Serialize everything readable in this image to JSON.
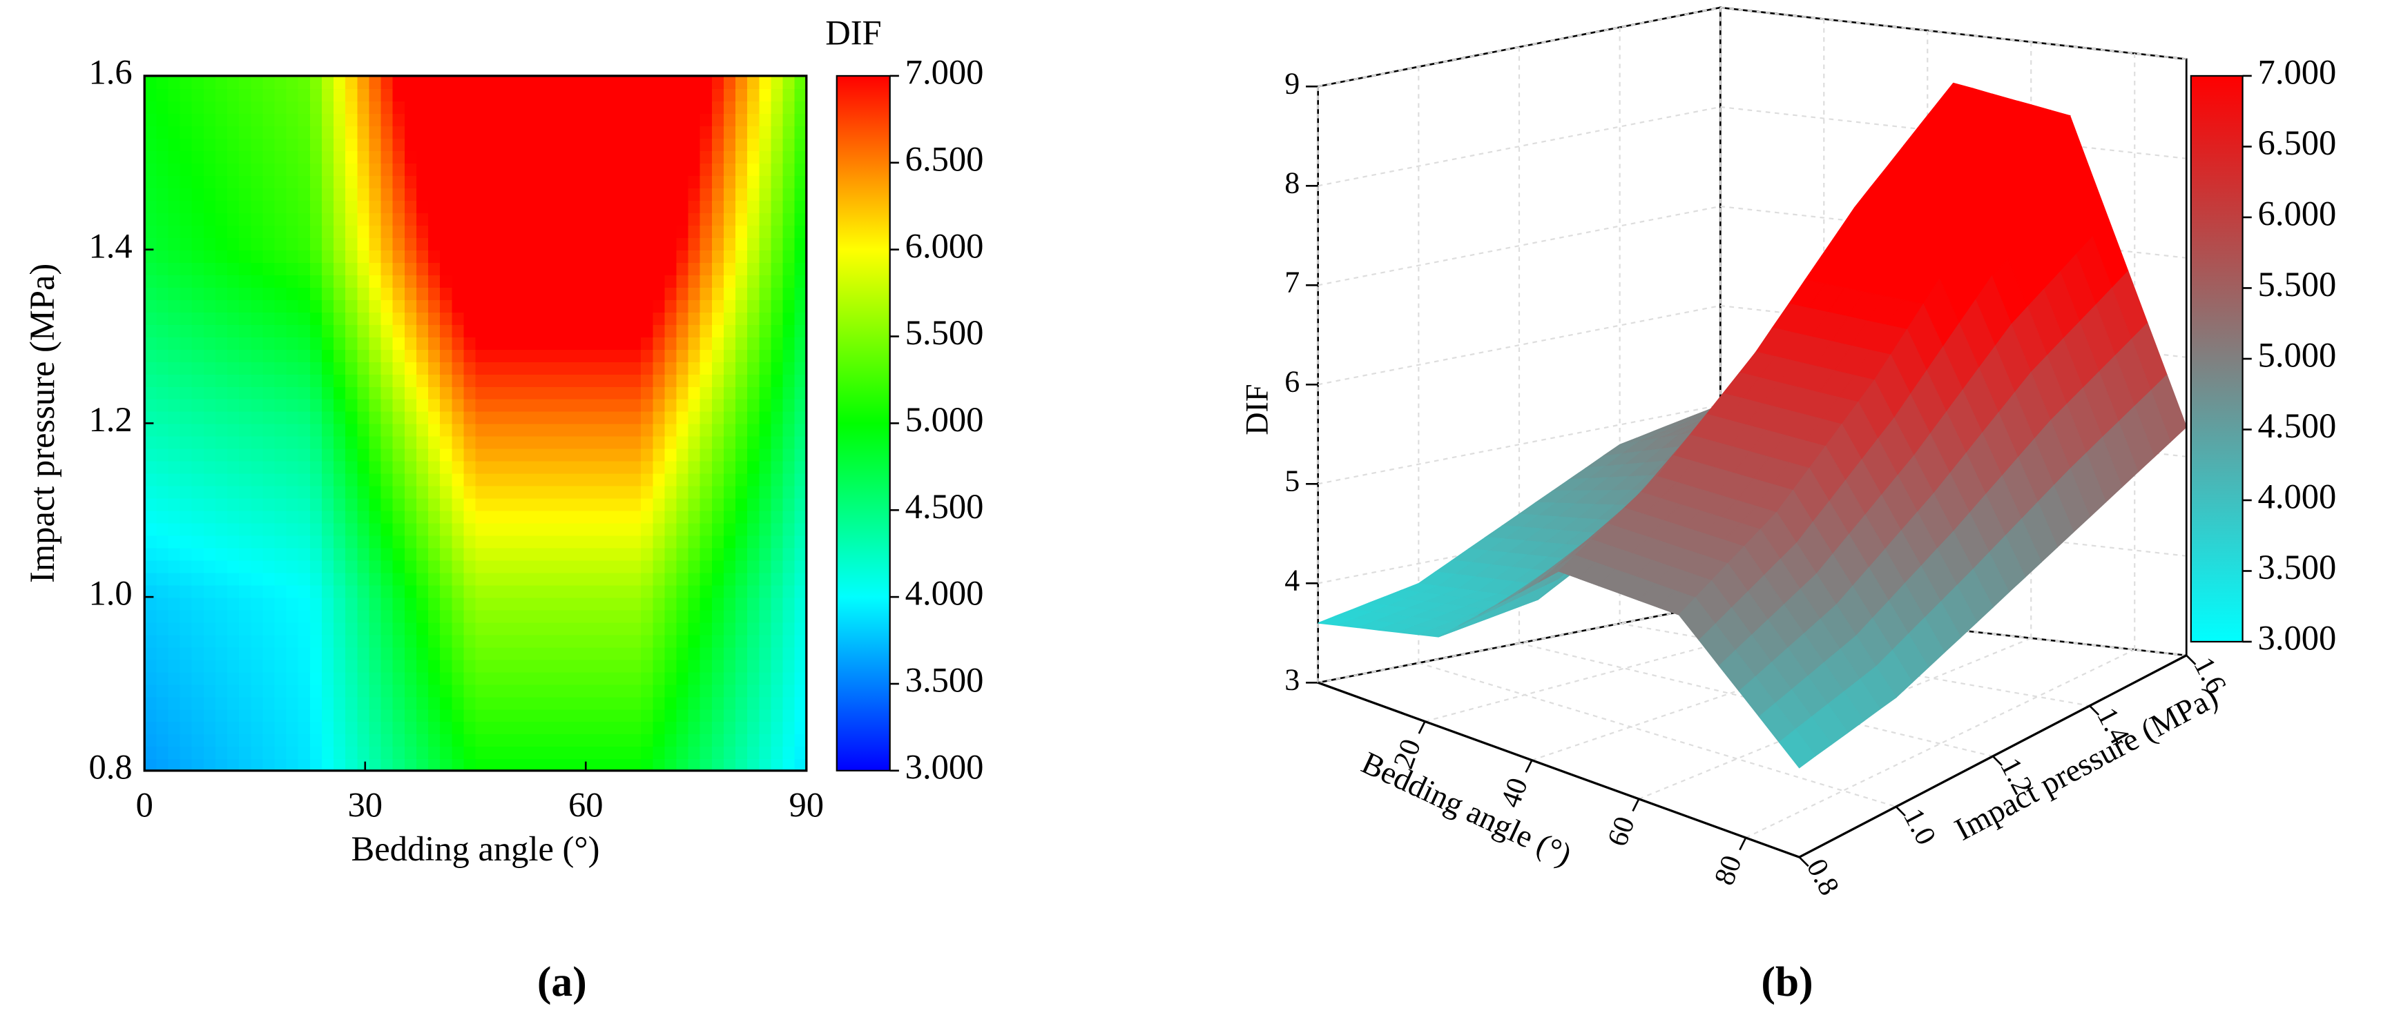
{
  "chart_data": [
    {
      "type": "contour",
      "colorbar_title": "DIF",
      "x_label": "Bedding angle (°)",
      "y_label": "Impact pressure (MPa)",
      "x": [
        0,
        22.5,
        45,
        67.5,
        90
      ],
      "y": [
        0.8,
        1.0,
        1.2,
        1.4,
        1.6
      ],
      "z": [
        [
          3.6,
          3.9,
          5.0,
          5.0,
          3.9
        ],
        [
          3.8,
          4.0,
          5.6,
          5.6,
          4.1
        ],
        [
          4.3,
          4.5,
          6.5,
          6.5,
          4.5
        ],
        [
          4.8,
          5.2,
          7.6,
          7.6,
          4.9
        ],
        [
          5.0,
          5.4,
          8.5,
          8.3,
          5.3
        ]
      ],
      "xlim": [
        0,
        90
      ],
      "xticks": [
        0,
        30,
        60,
        90
      ],
      "ylim": [
        0.8,
        1.6
      ],
      "yticks": [
        {
          "value": 0.8,
          "label": "0.8"
        },
        {
          "value": 1.0,
          "label": "1.0"
        },
        1.2,
        1.4,
        1.6
      ],
      "zlim": [
        3,
        7
      ],
      "zticks": [
        {
          "value": 3,
          "label": "3.000"
        },
        {
          "value": 3.5,
          "label": "3.500"
        },
        {
          "value": 4,
          "label": "4.000"
        },
        {
          "value": 4.5,
          "label": "4.500"
        },
        {
          "value": 5,
          "label": "5.000"
        },
        {
          "value": 5.5,
          "label": "5.500"
        },
        {
          "value": 6,
          "label": "6.000"
        },
        {
          "value": 6.5,
          "label": "6.500"
        },
        {
          "value": 7,
          "label": "7.000"
        }
      ],
      "colors": [
        "#0000ff",
        "#00ffff",
        "#00ff00",
        "#ffff00",
        "#ff0000"
      ],
      "panel_label": "(a)"
    },
    {
      "type": "surface3d",
      "z_label": "DIF",
      "x_label": "Bedding angle (°)",
      "y_label": "Impact pressure (MPa)",
      "x": [
        0,
        22.5,
        45,
        67.5,
        90
      ],
      "y": [
        0.8,
        1.0,
        1.2,
        1.4,
        1.6
      ],
      "z": [
        [
          3.6,
          3.9,
          5.0,
          5.0,
          3.9
        ],
        [
          3.8,
          4.0,
          5.6,
          5.6,
          4.1
        ],
        [
          4.3,
          4.5,
          6.5,
          6.5,
          4.5
        ],
        [
          4.8,
          5.2,
          7.6,
          7.6,
          4.9
        ],
        [
          5.0,
          5.4,
          8.5,
          8.3,
          5.3
        ]
      ],
      "xlim": [
        0,
        90
      ],
      "xticks": [
        20,
        40,
        60,
        80
      ],
      "ylim": [
        0.8,
        1.6
      ],
      "yticks": [
        {
          "value": 0.8,
          "label": "0.8"
        },
        {
          "value": 1.0,
          "label": "1.0"
        },
        1.2,
        1.4,
        1.6
      ],
      "zlim": [
        3,
        9
      ],
      "zticks": [
        3,
        4,
        5,
        6,
        7,
        8,
        9
      ],
      "clim": [
        3,
        7
      ],
      "cticks": [
        {
          "value": 3,
          "label": "3.000"
        },
        {
          "value": 3.5,
          "label": "3.500"
        },
        {
          "value": 4,
          "label": "4.000"
        },
        {
          "value": 4.5,
          "label": "4.500"
        },
        {
          "value": 5,
          "label": "5.000"
        },
        {
          "value": 5.5,
          "label": "5.500"
        },
        {
          "value": 6,
          "label": "6.000"
        },
        {
          "value": 6.5,
          "label": "6.500"
        },
        {
          "value": 7,
          "label": "7.000"
        }
      ],
      "colors": [
        "#00ffff",
        "#808080",
        "#ff0000"
      ],
      "panel_label": "(b)"
    }
  ]
}
